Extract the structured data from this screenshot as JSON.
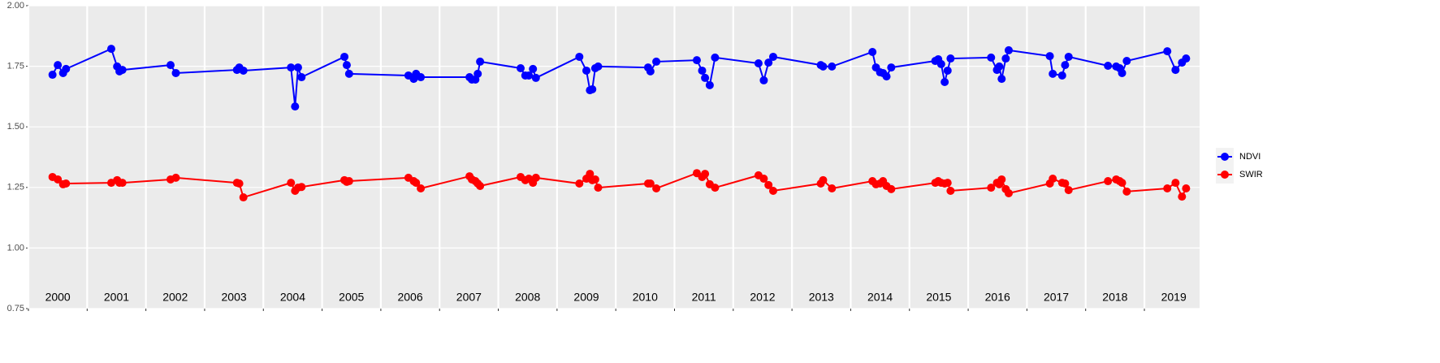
{
  "chart_data": {
    "type": "line",
    "x": [
      2000.41,
      2000.5,
      2000.59,
      2000.64,
      2001.41,
      2001.51,
      2001.55,
      2001.6,
      2002.42,
      2002.51,
      2003.55,
      2003.59,
      2003.66,
      2004.47,
      2004.54,
      2004.59,
      2004.65,
      2005.38,
      2005.42,
      2005.46,
      2006.47,
      2006.56,
      2006.6,
      2006.68,
      2007.51,
      2007.55,
      2007.61,
      2007.65,
      2007.69,
      2008.38,
      2008.46,
      2008.52,
      2008.59,
      2008.64,
      2009.38,
      2009.5,
      2009.56,
      2009.6,
      2009.65,
      2009.7,
      2010.55,
      2010.59,
      2010.69,
      2011.38,
      2011.47,
      2011.52,
      2011.6,
      2011.69,
      2012.43,
      2012.52,
      2012.6,
      2012.68,
      2013.49,
      2013.53,
      2013.68,
      2014.37,
      2014.43,
      2014.5,
      2014.55,
      2014.61,
      2014.69,
      2015.44,
      2015.49,
      2015.54,
      2015.6,
      2015.65,
      2015.7,
      2016.39,
      2016.49,
      2016.53,
      2016.57,
      2016.64,
      2016.69,
      2017.39,
      2017.44,
      2017.6,
      2017.65,
      2017.71,
      2018.38,
      2018.52,
      2018.58,
      2018.62,
      2018.7,
      2019.39,
      2019.53,
      2019.64,
      2019.71
    ],
    "series": [
      {
        "name": "NDVI",
        "color": "#0000ff",
        "values": [
          1.715,
          1.755,
          1.722,
          1.739,
          1.822,
          1.749,
          1.729,
          1.735,
          1.755,
          1.722,
          1.735,
          1.745,
          1.732,
          1.745,
          1.584,
          1.745,
          1.705,
          1.789,
          1.755,
          1.719,
          1.712,
          1.698,
          1.719,
          1.705,
          1.705,
          1.695,
          1.695,
          1.719,
          1.769,
          1.742,
          1.712,
          1.712,
          1.739,
          1.702,
          1.789,
          1.732,
          1.651,
          1.655,
          1.742,
          1.749,
          1.745,
          1.729,
          1.769,
          1.775,
          1.732,
          1.702,
          1.672,
          1.786,
          1.762,
          1.692,
          1.765,
          1.789,
          1.755,
          1.749,
          1.749,
          1.809,
          1.745,
          1.725,
          1.722,
          1.708,
          1.745,
          1.772,
          1.779,
          1.759,
          1.685,
          1.732,
          1.782,
          1.786,
          1.735,
          1.749,
          1.698,
          1.782,
          1.816,
          1.792,
          1.719,
          1.712,
          1.755,
          1.789,
          1.752,
          1.749,
          1.742,
          1.722,
          1.772,
          1.812,
          1.735,
          1.765,
          1.782
        ]
      },
      {
        "name": "SWIR",
        "color": "#ff0000",
        "values": [
          1.293,
          1.283,
          1.263,
          1.266,
          1.269,
          1.28,
          1.269,
          1.269,
          1.283,
          1.29,
          1.269,
          1.266,
          1.209,
          1.269,
          1.236,
          1.249,
          1.252,
          1.28,
          1.273,
          1.276,
          1.29,
          1.276,
          1.269,
          1.246,
          1.296,
          1.283,
          1.276,
          1.266,
          1.256,
          1.293,
          1.28,
          1.286,
          1.269,
          1.29,
          1.266,
          1.286,
          1.306,
          1.28,
          1.283,
          1.249,
          1.266,
          1.266,
          1.246,
          1.309,
          1.293,
          1.306,
          1.263,
          1.249,
          1.3,
          1.286,
          1.26,
          1.236,
          1.266,
          1.28,
          1.246,
          1.276,
          1.263,
          1.266,
          1.276,
          1.256,
          1.243,
          1.269,
          1.276,
          1.269,
          1.266,
          1.269,
          1.236,
          1.249,
          1.269,
          1.263,
          1.283,
          1.243,
          1.226,
          1.266,
          1.286,
          1.269,
          1.266,
          1.239,
          1.276,
          1.283,
          1.276,
          1.269,
          1.233,
          1.246,
          1.269,
          1.212,
          1.246
        ]
      }
    ],
    "xlim": [
      2000,
      2019.94
    ],
    "xticks": [
      2000,
      2001,
      2002,
      2003,
      2004,
      2005,
      2006,
      2007,
      2008,
      2009,
      2010,
      2011,
      2012,
      2013,
      2014,
      2015,
      2016,
      2017,
      2018,
      2019
    ],
    "ylim": [
      0.75,
      2.0
    ],
    "yticks": [
      {
        "value": 0.75,
        "label": "0.75"
      },
      {
        "value": 1,
        "label": "1.00"
      },
      {
        "value": 1.25,
        "label": "1.25"
      },
      {
        "value": 1.5,
        "label": "1.50"
      },
      {
        "value": 1.75,
        "label": "1.75"
      },
      {
        "value": 2,
        "label": "2.00"
      }
    ],
    "grid": true,
    "legend": "right"
  }
}
